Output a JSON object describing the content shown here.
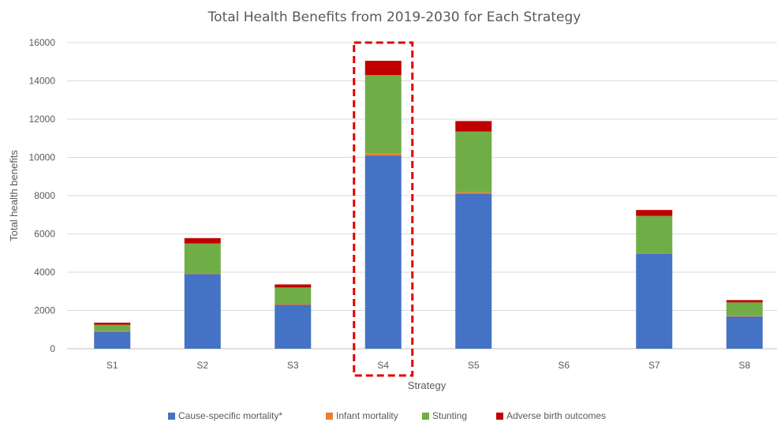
{
  "chart_data": {
    "type": "bar",
    "stacked": true,
    "title": "Total Health Benefits from 2019-2030 for Each Strategy",
    "xlabel": "Strategy",
    "ylabel": "Total health benefits",
    "categories": [
      "S1",
      "S2",
      "S3",
      "S4",
      "S5",
      "S6",
      "S7",
      "S8"
    ],
    "ylim": [
      0,
      16000
    ],
    "yticks": [
      0,
      2000,
      4000,
      6000,
      8000,
      10000,
      12000,
      14000,
      16000
    ],
    "grid": true,
    "legend_position": "bottom",
    "highlighted_category": "S4",
    "highlight_color": "#e00000",
    "series": [
      {
        "name": "Cause-specific mortality*",
        "color": "#4472c4",
        "values": [
          900,
          3900,
          2300,
          10100,
          8100,
          0,
          4950,
          1700
        ]
      },
      {
        "name": "Infant mortality",
        "color": "#ed7d31",
        "values": [
          20,
          40,
          30,
          120,
          80,
          0,
          40,
          20
        ]
      },
      {
        "name": "Stunting",
        "color": "#70ad47",
        "values": [
          330,
          1560,
          870,
          4080,
          3170,
          0,
          1950,
          700
        ]
      },
      {
        "name": "Adverse birth outcomes",
        "color": "#c00000",
        "values": [
          110,
          280,
          160,
          750,
          550,
          0,
          310,
          120
        ]
      }
    ]
  }
}
